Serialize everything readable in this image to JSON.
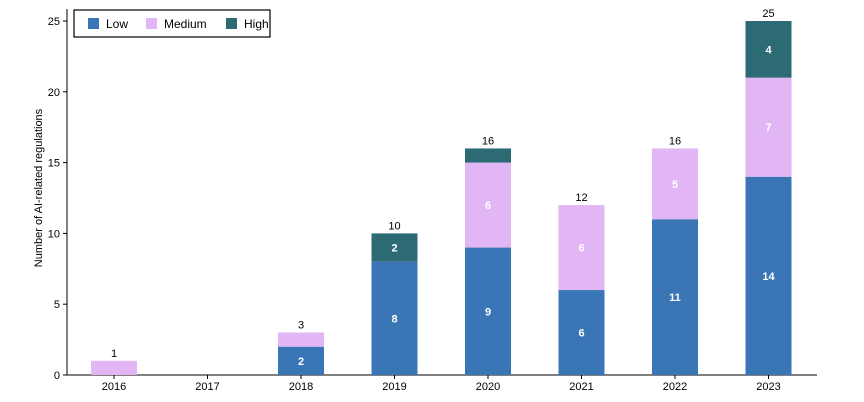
{
  "chart_data": {
    "type": "bar",
    "stacked": true,
    "categories": [
      "2016",
      "2017",
      "2018",
      "2019",
      "2020",
      "2021",
      "2022",
      "2023"
    ],
    "series": [
      {
        "name": "Low",
        "color": "#3a75b5",
        "values": [
          0,
          0,
          2,
          8,
          9,
          6,
          11,
          14
        ]
      },
      {
        "name": "Medium",
        "color": "#e2b5f4",
        "values": [
          1,
          0,
          1,
          0,
          6,
          6,
          5,
          7
        ]
      },
      {
        "name": "High",
        "color": "#2c6b73",
        "values": [
          0,
          0,
          0,
          2,
          1,
          0,
          0,
          4
        ]
      }
    ],
    "totals": [
      1,
      0,
      3,
      10,
      16,
      12,
      16,
      25
    ],
    "ylabel": "Number of AI-related regulations",
    "xlabel": "",
    "ylim": [
      0,
      25
    ],
    "yticks": [
      0,
      5,
      10,
      15,
      20,
      25
    ],
    "legend_position": "top-left",
    "grid": false
  }
}
